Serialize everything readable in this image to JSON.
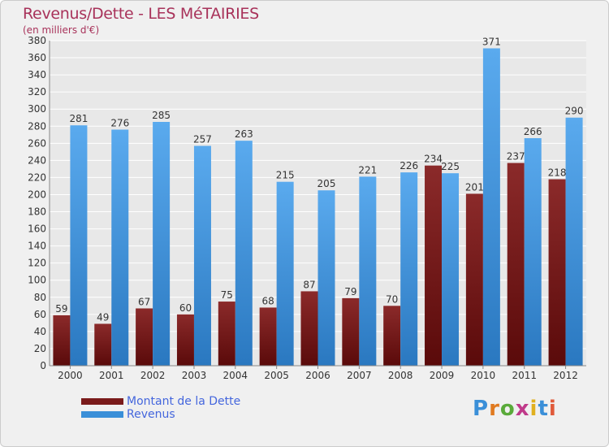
{
  "header": {
    "title": "Revenus/Dette - LES MéTAIRIES",
    "subtitle": "(en milliers d'€)"
  },
  "legend": {
    "items": [
      {
        "label": "Montant de la Dette",
        "color": "#7a1a1a"
      },
      {
        "label": "Revenus",
        "color": "#3a8fd8"
      }
    ]
  },
  "logo": {
    "text": "Proxiti"
  },
  "colors": {
    "dette_top": "#8b2a2a",
    "dette_bottom": "#5a0a0a",
    "revenus_top": "#5aaaee",
    "revenus_bottom": "#2a78c0",
    "grid": "#ffffff",
    "plot_bg": "#e8e8e8"
  },
  "chart_data": {
    "type": "bar",
    "categories": [
      "2000",
      "2001",
      "2002",
      "2003",
      "2004",
      "2005",
      "2006",
      "2007",
      "2008",
      "2009",
      "2010",
      "2011",
      "2012"
    ],
    "series": [
      {
        "name": "Montant de la Dette",
        "values": [
          59,
          49,
          67,
          60,
          75,
          68,
          87,
          79,
          70,
          234,
          201,
          237,
          218
        ]
      },
      {
        "name": "Revenus",
        "values": [
          281,
          276,
          285,
          257,
          263,
          215,
          205,
          221,
          226,
          225,
          371,
          266,
          290
        ]
      }
    ],
    "ylim": [
      0,
      380
    ],
    "yticks": [
      0,
      20,
      40,
      60,
      80,
      100,
      120,
      140,
      160,
      180,
      200,
      220,
      240,
      260,
      280,
      300,
      320,
      340,
      360,
      380
    ],
    "grid": true,
    "legend_position": "bottom-left"
  }
}
